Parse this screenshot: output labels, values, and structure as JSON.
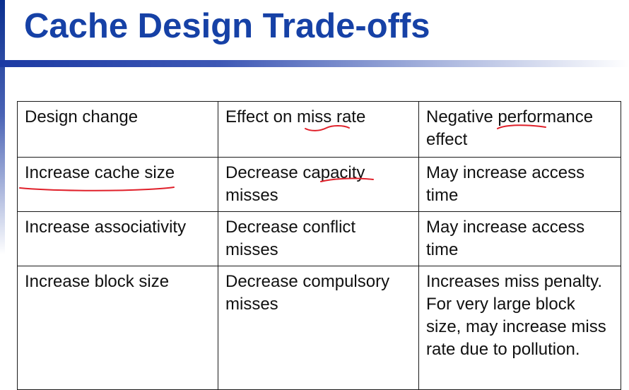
{
  "title": "Cache Design Trade-offs",
  "table": {
    "headers": [
      "Design change",
      "Effect on miss rate",
      "Negative performance effect"
    ],
    "rows": [
      [
        "Increase cache size",
        "Decrease capacity misses",
        "May increase access time"
      ],
      [
        "Increase associativity",
        "Decrease conflict misses",
        "May increase access time"
      ],
      [
        "Increase block size",
        "Decrease compulsory misses",
        "Increases miss penalty. For very large block size, may increase miss rate due to pollution."
      ]
    ]
  },
  "colors": {
    "title": "#1641a6",
    "accent": "#1c3aa3",
    "annotation": "#e0202a"
  }
}
